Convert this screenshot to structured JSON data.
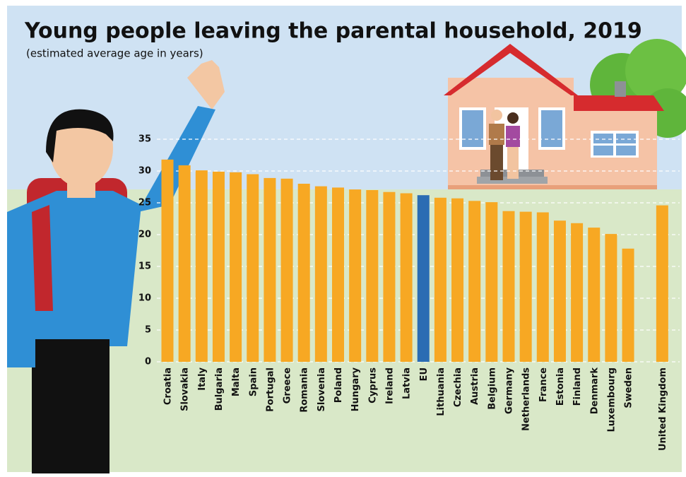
{
  "chart_data": {
    "type": "bar",
    "title": "Young people leaving the parental household, 2019",
    "subtitle": "(estimated average age in years)",
    "categories": [
      "Croatia",
      "Slovakia",
      "Italy",
      "Bulgaria",
      "Malta",
      "Spain",
      "Portugal",
      "Greece",
      "Romania",
      "Slovenia",
      "Poland",
      "Hungary",
      "Cyprus",
      "Ireland",
      "Latvia",
      "EU",
      "Lithuania",
      "Czechia",
      "Austria",
      "Belgium",
      "Germany",
      "Netherlands",
      "France",
      "Estonia",
      "Finland",
      "Denmark",
      "Luxembourg",
      "Sweden",
      null,
      "United Kingdom"
    ],
    "values": [
      31.8,
      30.9,
      30.1,
      29.9,
      29.8,
      29.5,
      28.9,
      28.8,
      28.0,
      27.6,
      27.4,
      27.1,
      27.0,
      26.7,
      26.5,
      26.2,
      25.8,
      25.7,
      25.3,
      25.1,
      23.7,
      23.6,
      23.5,
      22.2,
      21.8,
      21.1,
      20.1,
      17.8,
      null,
      24.6
    ],
    "colors": [
      "#f7a823",
      "#f7a823",
      "#f7a823",
      "#f7a823",
      "#f7a823",
      "#f7a823",
      "#f7a823",
      "#f7a823",
      "#f7a823",
      "#f7a823",
      "#f7a823",
      "#f7a823",
      "#f7a823",
      "#f7a823",
      "#f7a823",
      "#2b6cb3",
      "#f7a823",
      "#f7a823",
      "#f7a823",
      "#f7a823",
      "#f7a823",
      "#f7a823",
      "#f7a823",
      "#f7a823",
      "#f7a823",
      "#f7a823",
      "#f7a823",
      "#f7a823",
      null,
      "#f7a823"
    ],
    "ylim": [
      0,
      35
    ],
    "yticks": [
      0,
      5,
      10,
      15,
      20,
      25,
      30,
      35
    ],
    "grid": true
  }
}
